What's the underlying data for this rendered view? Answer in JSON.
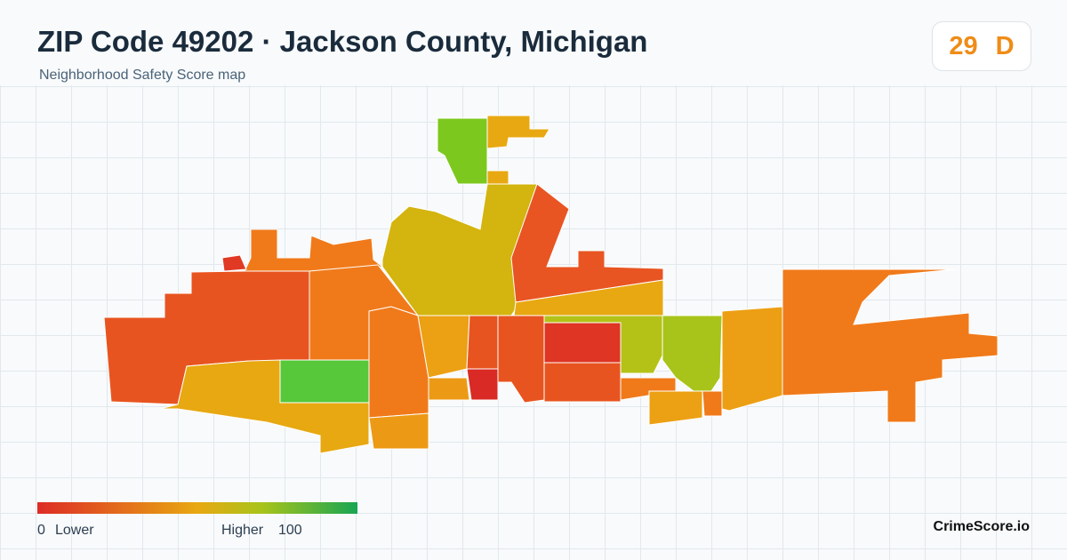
{
  "header": {
    "title": "ZIP Code 49202 · Jackson County, Michigan",
    "subtitle": "Neighborhood Safety Score map"
  },
  "score": {
    "value": 29,
    "grade": "D"
  },
  "legend": {
    "min": 0,
    "min_label": "Lower",
    "max_label": "Higher",
    "max": 100
  },
  "brand": "CrimeScore.io"
}
